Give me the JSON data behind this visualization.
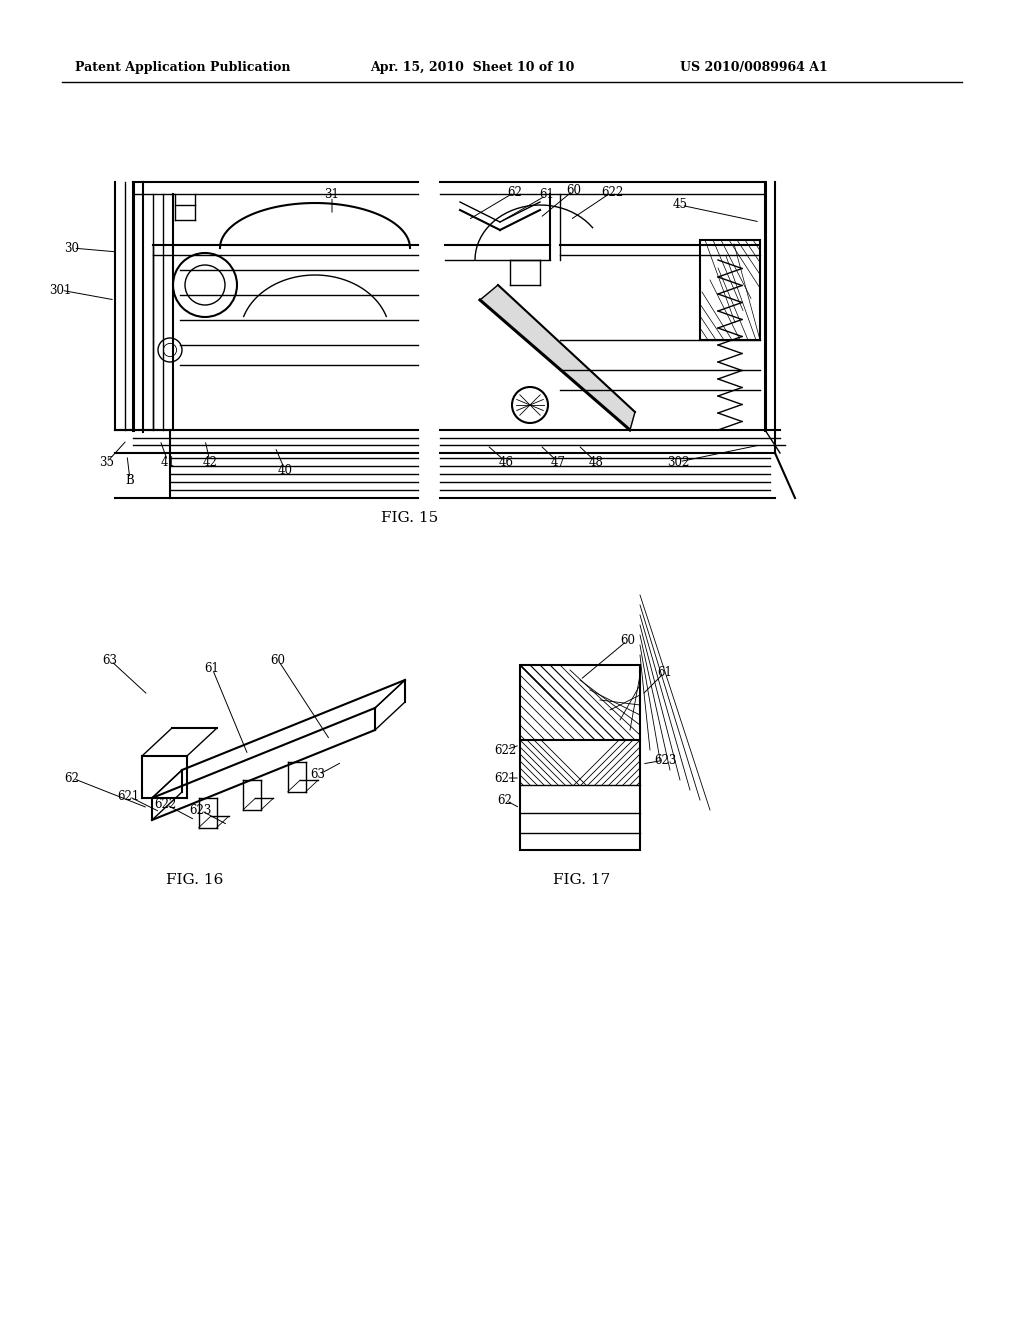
{
  "background_color": "#ffffff",
  "header_left": "Patent Application Publication",
  "header_mid": "Apr. 15, 2010  Sheet 10 of 10",
  "header_right": "US 2010/0089964 A1",
  "fig15_caption": "FIG. 15",
  "fig16_caption": "FIG. 16",
  "fig17_caption": "FIG. 17",
  "line_color": "#000000",
  "label_fontsize": 8.5,
  "caption_fontsize": 11
}
